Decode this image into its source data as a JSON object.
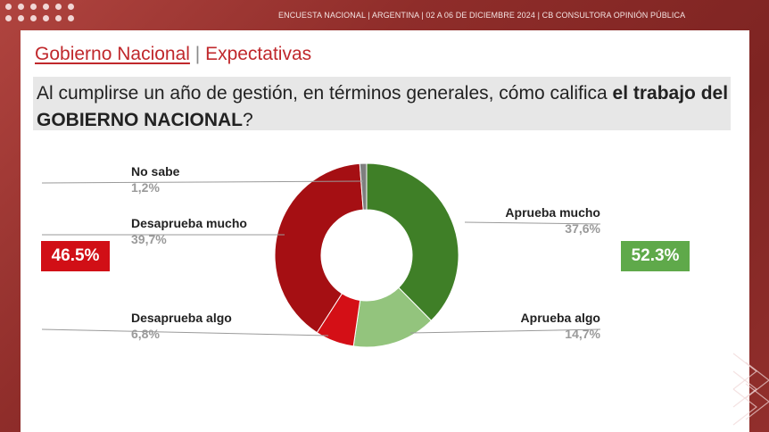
{
  "header": {
    "survey_line": "ENCUESTA NACIONAL  |  ARGENTINA  | 02 A 06 DE DICIEMBRE 2024 | CB CONSULTORA OPINIÓN PÚBLICA"
  },
  "section": {
    "title_a": "Gobierno Nacional",
    "separator": " | ",
    "title_b": "Expectativas"
  },
  "question": {
    "pre": "Al cumplirse un año de gestión, en términos generales, cómo califica ",
    "bold": "el trabajo del GOBIERNO NACIONAL",
    "post": "?"
  },
  "totals": {
    "disapprove": "46.5%",
    "approve": "52.3%"
  },
  "colors": {
    "aprueba_mucho": "#3f7f27",
    "aprueba_algo": "#93c47d",
    "desaprueba_algo": "#d40f16",
    "desaprueba_mucho": "#a50f13",
    "no_sabe": "#7f7f7f",
    "red_badge": "#d10f16",
    "green_badge": "#5fa94a"
  },
  "chart_data": {
    "type": "pie",
    "donut": true,
    "slices": [
      {
        "label": "Aprueba mucho",
        "value": 37.6,
        "display": "37,6%",
        "color": "#3f7f27"
      },
      {
        "label": "Aprueba algo",
        "value": 14.7,
        "display": "14,7%",
        "color": "#93c47d"
      },
      {
        "label": "Desaprueba algo",
        "value": 6.8,
        "display": "6,8%",
        "color": "#d40f16"
      },
      {
        "label": "Desaprueba mucho",
        "value": 39.7,
        "display": "39,7%",
        "color": "#a50f13"
      },
      {
        "label": "No sabe",
        "value": 1.2,
        "display": "1,2%",
        "color": "#7f7f7f"
      }
    ]
  }
}
